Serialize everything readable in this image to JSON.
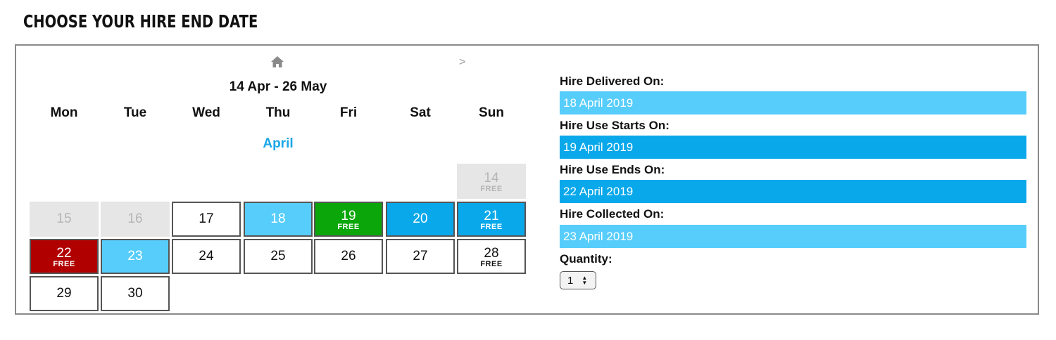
{
  "heading": "CHOOSE YOUR HIRE END DATE",
  "calendar": {
    "range_title": "14 Apr - 26 May",
    "next_arrow": ">",
    "home_icon": "home-icon",
    "weekdays": [
      "Mon",
      "Tue",
      "Wed",
      "Thu",
      "Fri",
      "Sat",
      "Sun"
    ],
    "month": "April",
    "days": [
      {
        "day": "14",
        "tag": "FREE",
        "state": "disabled"
      },
      {
        "day": "15",
        "tag": "",
        "state": "disabled"
      },
      {
        "day": "16",
        "tag": "",
        "state": "disabled"
      },
      {
        "day": "17",
        "tag": "",
        "state": "available"
      },
      {
        "day": "18",
        "tag": "",
        "state": "delivered"
      },
      {
        "day": "19",
        "tag": "FREE",
        "state": "use-start"
      },
      {
        "day": "20",
        "tag": "",
        "state": "in-use"
      },
      {
        "day": "21",
        "tag": "FREE",
        "state": "in-use"
      },
      {
        "day": "22",
        "tag": "FREE",
        "state": "use-end"
      },
      {
        "day": "23",
        "tag": "",
        "state": "collected"
      },
      {
        "day": "24",
        "tag": "",
        "state": "available"
      },
      {
        "day": "25",
        "tag": "",
        "state": "available"
      },
      {
        "day": "26",
        "tag": "",
        "state": "available"
      },
      {
        "day": "27",
        "tag": "",
        "state": "available"
      },
      {
        "day": "28",
        "tag": "FREE",
        "state": "available"
      },
      {
        "day": "29",
        "tag": "",
        "state": "available"
      },
      {
        "day": "30",
        "tag": "",
        "state": "available"
      }
    ]
  },
  "summary": {
    "delivered_label": "Hire Delivered On:",
    "delivered_value": "18 April 2019",
    "use_starts_label": "Hire Use Starts On:",
    "use_starts_value": "19 April 2019",
    "use_ends_label": "Hire Use Ends On:",
    "use_ends_value": "22 April 2019",
    "collected_label": "Hire Collected On:",
    "collected_value": "23 April 2019",
    "quantity_label": "Quantity:",
    "quantity_value": "1"
  },
  "colors": {
    "light_blue": "#57cdfb",
    "blue": "#09a8ea",
    "green": "#0aa60a",
    "red": "#b00000",
    "disabled": "#e6e6e6"
  }
}
